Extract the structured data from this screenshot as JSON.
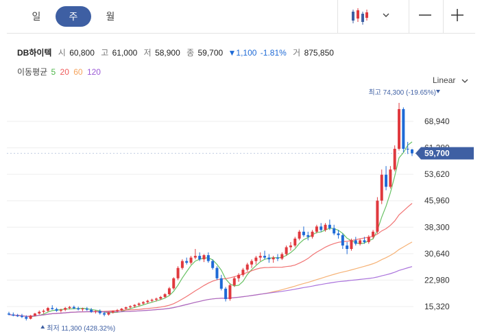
{
  "tabs": [
    {
      "label": "일",
      "active": false
    },
    {
      "label": "주",
      "active": true
    },
    {
      "label": "월",
      "active": false
    }
  ],
  "controls": {
    "chart_type_icon": "candlestick-icon",
    "dropdown_icon": "chevron-down-icon",
    "zoom_out_icon": "minus-icon",
    "zoom_in_icon": "plus-icon"
  },
  "stock": {
    "name": "DB하이텍",
    "open_label": "시",
    "open": "60,800",
    "high_label": "고",
    "high": "61,000",
    "low_label": "저",
    "low": "58,900",
    "close_label": "종",
    "close": "59,700",
    "change": "▼1,100",
    "change_pct": "-1.81%",
    "volume_label": "거",
    "volume": "875,850"
  },
  "moving_average": {
    "label": "이동평균",
    "periods": [
      {
        "label": "5",
        "color": "#4cb648"
      },
      {
        "label": "20",
        "color": "#ef5a5a"
      },
      {
        "label": "60",
        "color": "#f5a35c"
      },
      {
        "label": "120",
        "color": "#9b59d6"
      }
    ]
  },
  "scale_select": {
    "label": "Linear",
    "icon": "chevron-down-icon"
  },
  "colors": {
    "up": "#e0393e",
    "down": "#1e6ad6",
    "accent": "#3e5fa3",
    "price_tag": "#3e5fa3"
  },
  "chart_data": {
    "type": "candlestick",
    "y_ticks": [
      "68,940",
      "61,280",
      "53,620",
      "45,960",
      "38,300",
      "30,640",
      "22,980",
      "15,320"
    ],
    "y_tick_values": [
      68940,
      61280,
      53620,
      45960,
      38300,
      30640,
      22980,
      15320
    ],
    "ylim": [
      11000,
      77000
    ],
    "current_price_label": "59,700",
    "current_price": 59700,
    "high_annotation": {
      "text": "최고 74,300 (-19.65%)",
      "value": 74300,
      "index": 99
    },
    "low_annotation": {
      "text": "최저 11,300 (428.32%)",
      "value": 11300,
      "index": 4
    },
    "candles": [
      [
        13300,
        13800,
        12800,
        13000
      ],
      [
        13000,
        13600,
        12500,
        12700
      ],
      [
        12700,
        13200,
        12300,
        12600
      ],
      [
        12600,
        13200,
        12000,
        12300
      ],
      [
        12300,
        12800,
        11300,
        11800
      ],
      [
        11800,
        12900,
        11600,
        12700
      ],
      [
        12700,
        13500,
        12500,
        13300
      ],
      [
        13300,
        14200,
        13000,
        13800
      ],
      [
        13800,
        14500,
        13300,
        14100
      ],
      [
        14100,
        15200,
        13800,
        14900
      ],
      [
        14900,
        15700,
        14400,
        14600
      ],
      [
        14600,
        15000,
        13800,
        14100
      ],
      [
        14100,
        14700,
        13600,
        14400
      ],
      [
        14400,
        15200,
        14000,
        14900
      ],
      [
        14900,
        15500,
        14500,
        15200
      ],
      [
        15200,
        15600,
        14600,
        14800
      ],
      [
        14800,
        15300,
        14200,
        14500
      ],
      [
        14500,
        15000,
        14000,
        14700
      ],
      [
        14700,
        15200,
        14100,
        14400
      ],
      [
        14400,
        14900,
        13500,
        13800
      ],
      [
        13800,
        14300,
        13300,
        14000
      ],
      [
        14000,
        14500,
        13000,
        13400
      ],
      [
        13400,
        13900,
        12500,
        13000
      ],
      [
        13000,
        13800,
        12700,
        13600
      ],
      [
        13600,
        14200,
        13300,
        14000
      ],
      [
        14000,
        14600,
        13700,
        14300
      ],
      [
        14300,
        14900,
        14000,
        14700
      ],
      [
        14700,
        15300,
        14400,
        15100
      ],
      [
        15100,
        15700,
        14800,
        15400
      ],
      [
        15400,
        16000,
        15000,
        15800
      ],
      [
        15800,
        16500,
        15400,
        16200
      ],
      [
        16200,
        16900,
        15900,
        16600
      ],
      [
        16600,
        17300,
        16200,
        17000
      ],
      [
        17000,
        17600,
        16600,
        17300
      ],
      [
        17300,
        17900,
        16800,
        17600
      ],
      [
        17600,
        18400,
        17200,
        18100
      ],
      [
        18100,
        19200,
        17800,
        18900
      ],
      [
        18900,
        21000,
        18600,
        20600
      ],
      [
        20600,
        23800,
        20200,
        23500
      ],
      [
        23500,
        27000,
        23000,
        26500
      ],
      [
        26500,
        29000,
        26000,
        28500
      ],
      [
        28500,
        29500,
        27500,
        28000
      ],
      [
        28000,
        30000,
        27500,
        29500
      ],
      [
        29500,
        32000,
        29000,
        30000
      ],
      [
        30000,
        31000,
        28500,
        29000
      ],
      [
        29000,
        30500,
        28200,
        30200
      ],
      [
        30200,
        31000,
        28000,
        28500
      ],
      [
        28500,
        29000,
        26000,
        26500
      ],
      [
        26500,
        27000,
        23000,
        23500
      ],
      [
        23500,
        24500,
        20000,
        20500
      ],
      [
        20500,
        21000,
        16800,
        17500
      ],
      [
        17500,
        22000,
        17000,
        21500
      ],
      [
        21500,
        24000,
        21000,
        23500
      ],
      [
        23500,
        25000,
        22500,
        24500
      ],
      [
        24500,
        26500,
        24000,
        26000
      ],
      [
        26000,
        28000,
        25500,
        27500
      ],
      [
        27500,
        29000,
        26500,
        28500
      ],
      [
        28500,
        30000,
        27500,
        29500
      ],
      [
        29500,
        31000,
        28500,
        30000
      ],
      [
        30000,
        31500,
        29000,
        29500
      ],
      [
        29500,
        30500,
        28000,
        29000
      ],
      [
        29000,
        30000,
        28000,
        29500
      ],
      [
        29500,
        30500,
        28500,
        29200
      ],
      [
        29200,
        31000,
        28800,
        30500
      ],
      [
        30500,
        33000,
        30000,
        32500
      ],
      [
        32500,
        34000,
        31500,
        33000
      ],
      [
        33000,
        35500,
        32500,
        35000
      ],
      [
        35000,
        37500,
        34500,
        37000
      ],
      [
        37000,
        38500,
        35500,
        36000
      ],
      [
        36000,
        37000,
        34500,
        35500
      ],
      [
        35500,
        37500,
        35000,
        37000
      ],
      [
        37000,
        39000,
        36500,
        38500
      ],
      [
        38500,
        39500,
        37000,
        37500
      ],
      [
        37500,
        39500,
        37000,
        39000
      ],
      [
        39000,
        40500,
        37500,
        38000
      ],
      [
        38000,
        39000,
        36000,
        36500
      ],
      [
        36500,
        37500,
        35000,
        36000
      ],
      [
        36000,
        36500,
        32000,
        33000
      ],
      [
        33000,
        34000,
        30500,
        32000
      ],
      [
        32000,
        35000,
        31500,
        34500
      ],
      [
        34500,
        35500,
        33000,
        33500
      ],
      [
        33500,
        35000,
        33000,
        34500
      ],
      [
        34500,
        35500,
        33500,
        34000
      ],
      [
        34000,
        36000,
        33500,
        35500
      ],
      [
        35500,
        37500,
        35000,
        37000
      ],
      [
        37000,
        47000,
        36500,
        46000
      ],
      [
        46000,
        55000,
        45000,
        53500
      ],
      [
        53500,
        56000,
        49000,
        50000
      ],
      [
        50000,
        56000,
        49500,
        55000
      ],
      [
        55000,
        62000,
        54500,
        61000
      ],
      [
        61000,
        74300,
        60500,
        72500
      ],
      [
        72500,
        73000,
        60000,
        61000
      ],
      [
        61000,
        63000,
        59500,
        60800
      ],
      [
        60800,
        61000,
        58900,
        59700
      ]
    ],
    "ma_periods": [
      5,
      20,
      60,
      120
    ]
  }
}
